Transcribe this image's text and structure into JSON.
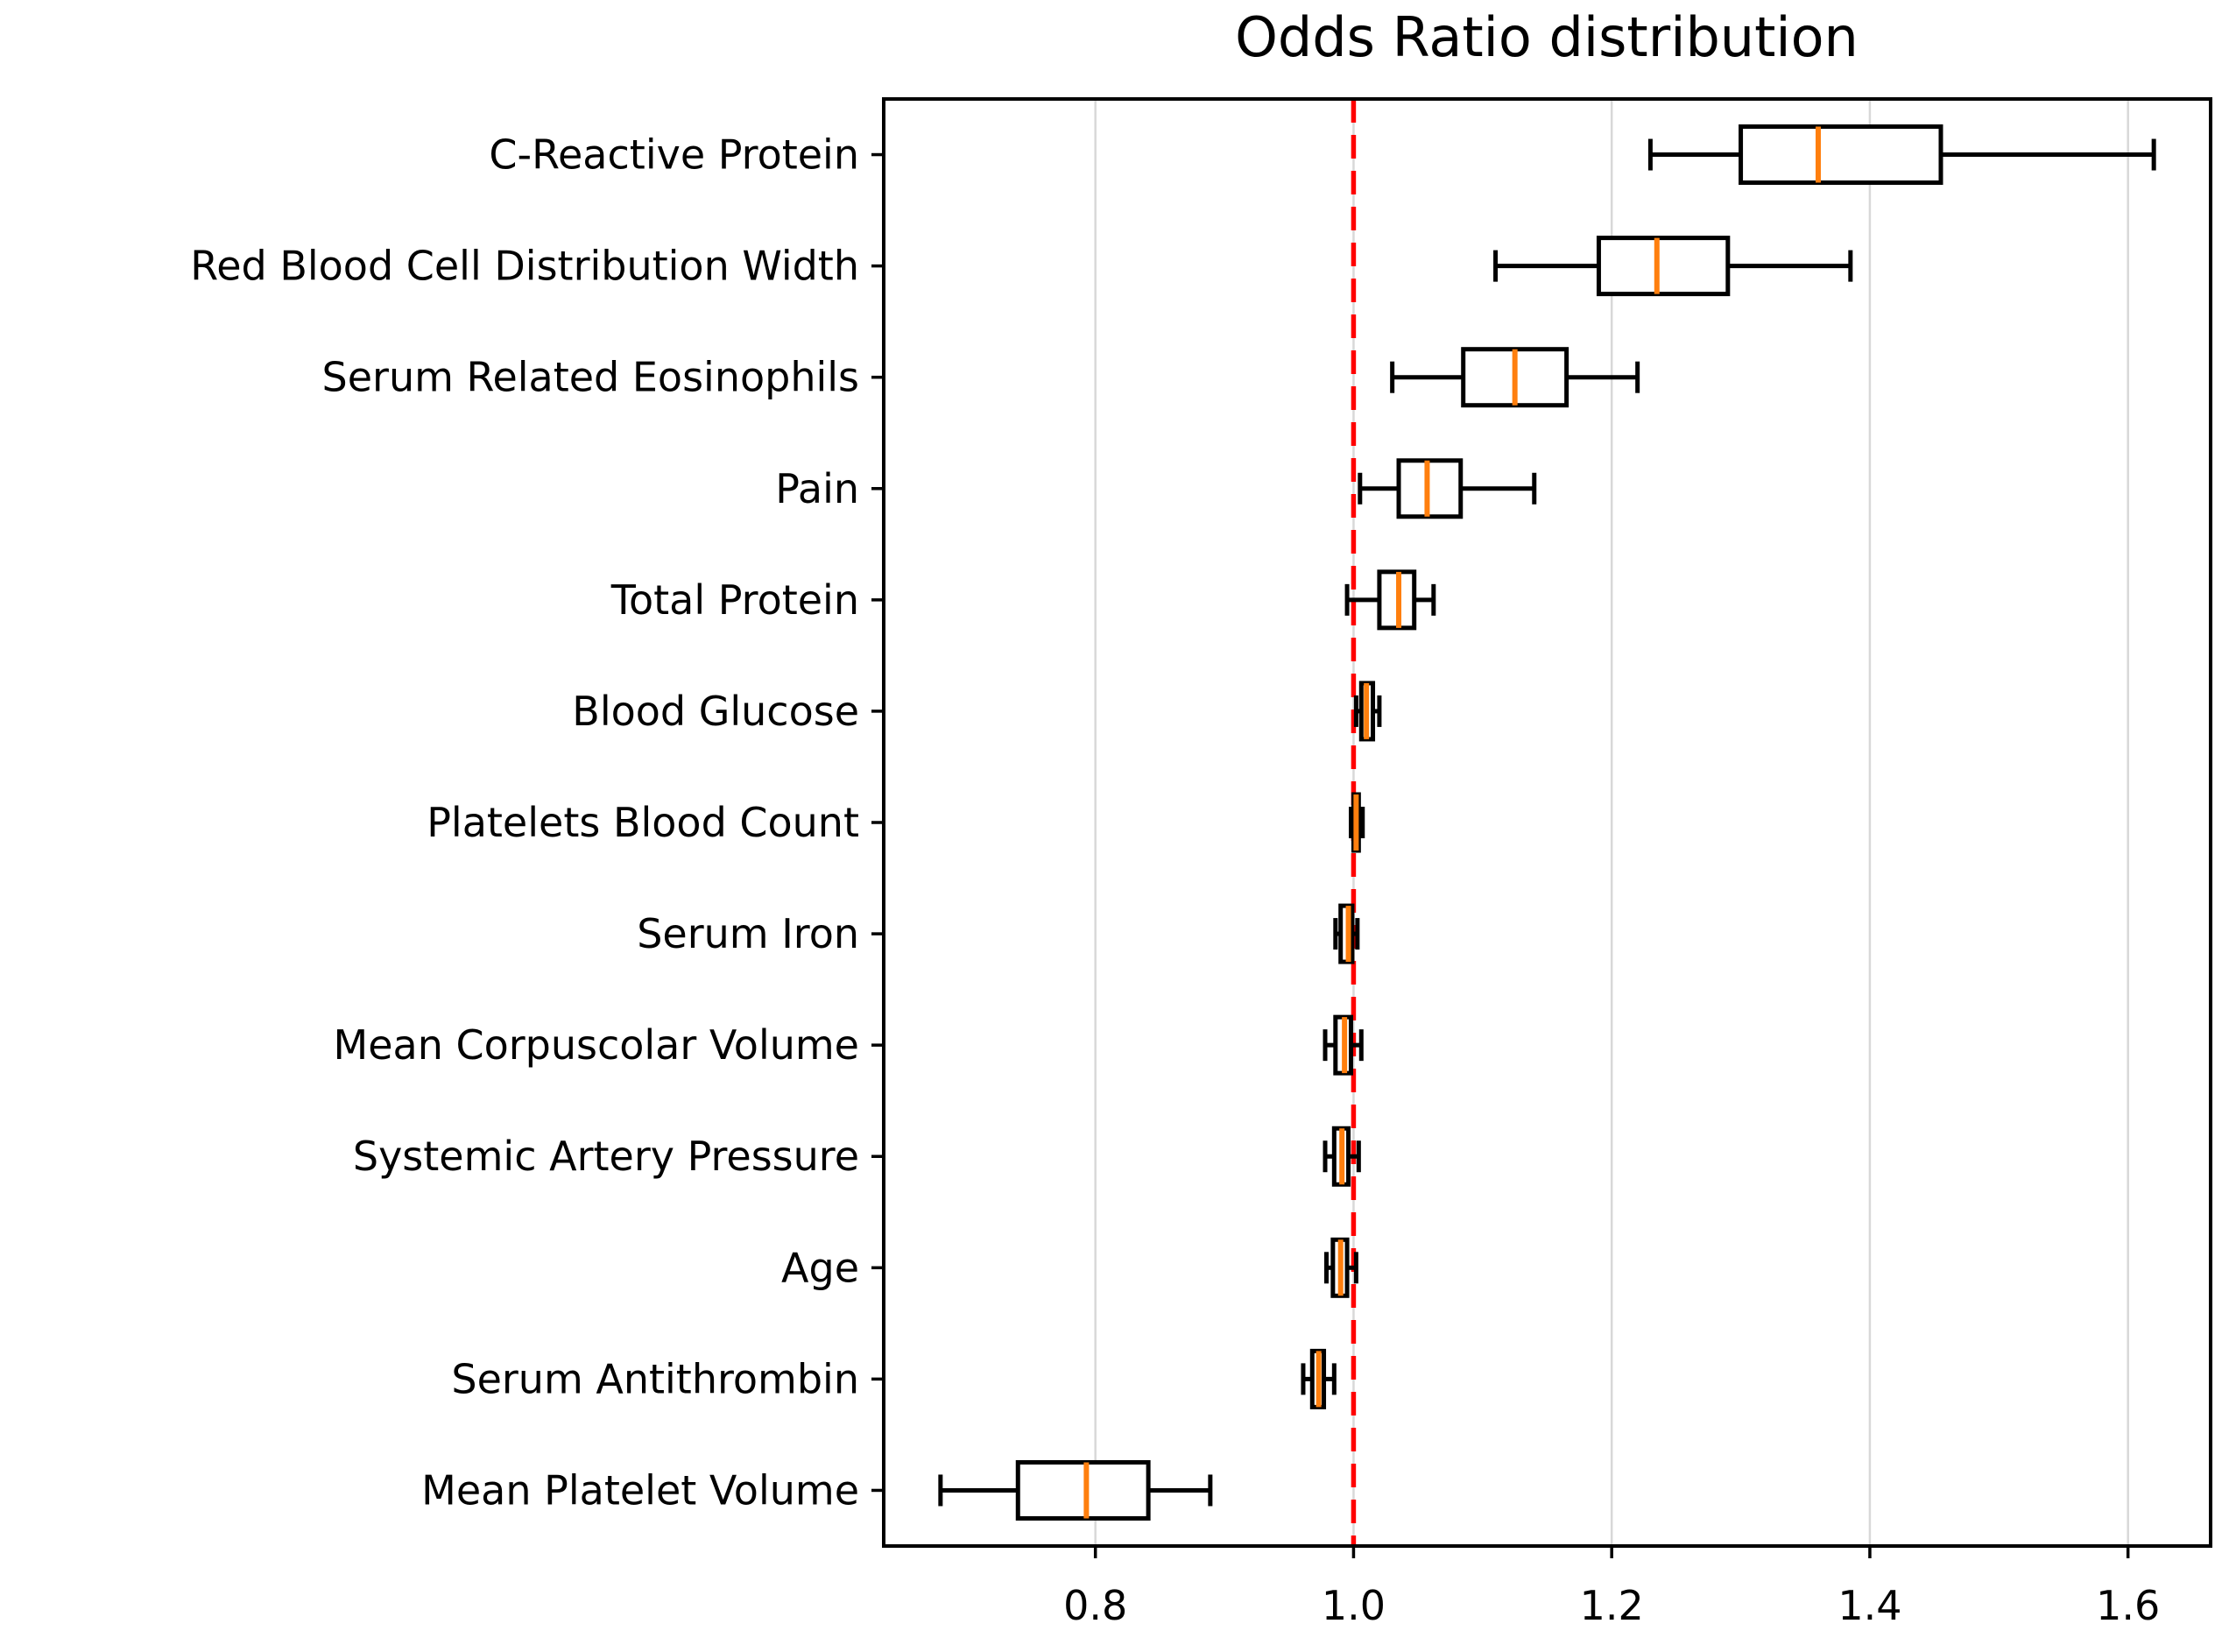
{
  "page": {
    "background": "#ffffff"
  },
  "chart_data": {
    "type": "boxplot",
    "orientation": "horizontal",
    "title": "Odds Ratio distribution",
    "xlabel": "",
    "ylabel": "",
    "grid": true,
    "legend": false,
    "xlim": [
      0.636,
      1.664
    ],
    "xticks": {
      "values": [
        0.8,
        1.0,
        1.2,
        1.4,
        1.6
      ],
      "labels": [
        "0.8",
        "1.0",
        "1.2",
        "1.4",
        "1.6"
      ]
    },
    "reference_line": {
      "x": 1.0,
      "style": "dashed",
      "color": "#ff0000"
    },
    "colors": {
      "box_edge": "#000000",
      "median": "#ff7f0e",
      "grid": "#d8d8d8",
      "axis": "#000000",
      "background": "#ffffff"
    },
    "categories": [
      "C-Reactive Protein",
      "Red Blood Cell Distribution Width",
      "Serum Related Eosinophils",
      "Pain",
      "Total Protein",
      "Blood Glucose",
      "Platelets Blood Count",
      "Serum Iron",
      "Mean Corpuscolar Volume",
      "Systemic Artery Pressure",
      "Age",
      "Serum Antithrombin",
      "Mean Platelet Volume"
    ],
    "boxes": [
      {
        "whislo": 1.23,
        "q1": 1.3,
        "med": 1.36,
        "q3": 1.455,
        "whishi": 1.62
      },
      {
        "whislo": 1.11,
        "q1": 1.19,
        "med": 1.235,
        "q3": 1.29,
        "whishi": 1.385
      },
      {
        "whislo": 1.03,
        "q1": 1.085,
        "med": 1.125,
        "q3": 1.165,
        "whishi": 1.22
      },
      {
        "whislo": 1.005,
        "q1": 1.035,
        "med": 1.057,
        "q3": 1.083,
        "whishi": 1.14
      },
      {
        "whislo": 0.995,
        "q1": 1.02,
        "med": 1.035,
        "q3": 1.047,
        "whishi": 1.062
      },
      {
        "whislo": 1.002,
        "q1": 1.006,
        "med": 1.01,
        "q3": 1.015,
        "whishi": 1.02
      },
      {
        "whislo": 0.998,
        "q1": 1.0,
        "med": 1.002,
        "q3": 1.004,
        "whishi": 1.007
      },
      {
        "whislo": 0.986,
        "q1": 0.99,
        "med": 0.996,
        "q3": 0.999,
        "whishi": 1.003
      },
      {
        "whislo": 0.978,
        "q1": 0.986,
        "med": 0.993,
        "q3": 0.998,
        "whishi": 1.006
      },
      {
        "whislo": 0.978,
        "q1": 0.985,
        "med": 0.991,
        "q3": 0.996,
        "whishi": 1.004
      },
      {
        "whislo": 0.979,
        "q1": 0.984,
        "med": 0.99,
        "q3": 0.995,
        "whishi": 1.002
      },
      {
        "whislo": 0.961,
        "q1": 0.968,
        "med": 0.973,
        "q3": 0.977,
        "whishi": 0.985
      },
      {
        "whislo": 0.68,
        "q1": 0.74,
        "med": 0.793,
        "q3": 0.841,
        "whishi": 0.889
      }
    ]
  }
}
